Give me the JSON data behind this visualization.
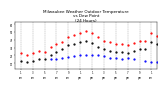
{
  "title": "Milwaukee Weather Outdoor Temperature\nvs Dew Point\n(24 Hours)",
  "title_fontsize": 3.0,
  "background_color": "#ffffff",
  "xlim": [
    0,
    24
  ],
  "ylim": [
    10,
    70
  ],
  "grid_color": "#888888",
  "temp_color": "#ff0000",
  "dew_color": "#0000ff",
  "other_color": "#000000",
  "temp_x": [
    1,
    2,
    3,
    4,
    5,
    6,
    7,
    8,
    9,
    10,
    11,
    12,
    13,
    14,
    15,
    16,
    17,
    18,
    19,
    20,
    21,
    22,
    23,
    24
  ],
  "temp_y": [
    30,
    28,
    30,
    33,
    32,
    38,
    42,
    44,
    50,
    53,
    56,
    58,
    55,
    50,
    46,
    44,
    42,
    42,
    40,
    43,
    46,
    45,
    55,
    52
  ],
  "dew_x": [
    6,
    7,
    8,
    9,
    10,
    11,
    12,
    13,
    14,
    15,
    16,
    17,
    18,
    19,
    20,
    22,
    23,
    24
  ],
  "dew_y": [
    22,
    23,
    24,
    25,
    26,
    27,
    28,
    28,
    27,
    26,
    24,
    24,
    23,
    24,
    22,
    20,
    19,
    18
  ],
  "other_x": [
    1,
    2,
    3,
    4,
    5,
    6,
    7,
    8,
    9,
    10,
    11,
    12,
    13,
    14,
    15,
    16,
    17,
    18,
    19,
    20,
    21,
    22,
    23,
    24
  ],
  "other_y": [
    20,
    18,
    20,
    22,
    22,
    28,
    32,
    35,
    40,
    42,
    44,
    46,
    43,
    38,
    35,
    33,
    32,
    32,
    30,
    33,
    35,
    35,
    44,
    42
  ],
  "vgrid_x": [
    1,
    3,
    5,
    7,
    9,
    11,
    13,
    15,
    17,
    19,
    21,
    23
  ],
  "xtick_pos": [
    1,
    3,
    5,
    7,
    9,
    11,
    13,
    15,
    17,
    19,
    21,
    23
  ],
  "xtick_lab": [
    "1",
    "3",
    "5",
    "7",
    "9",
    "1",
    "1",
    "3",
    "5",
    "7",
    "9",
    "1"
  ],
  "xtick_lab2": [
    "am",
    "am",
    "am",
    "am",
    "am",
    "pm",
    "pm",
    "pm",
    "pm",
    "pm",
    "pm",
    "am"
  ],
  "ytick_pos": [
    17,
    27,
    37,
    47,
    57,
    67
  ],
  "ytick_lab": [
    "17",
    "27",
    "37",
    "47",
    "57",
    "67"
  ],
  "marker_size": 1.2
}
